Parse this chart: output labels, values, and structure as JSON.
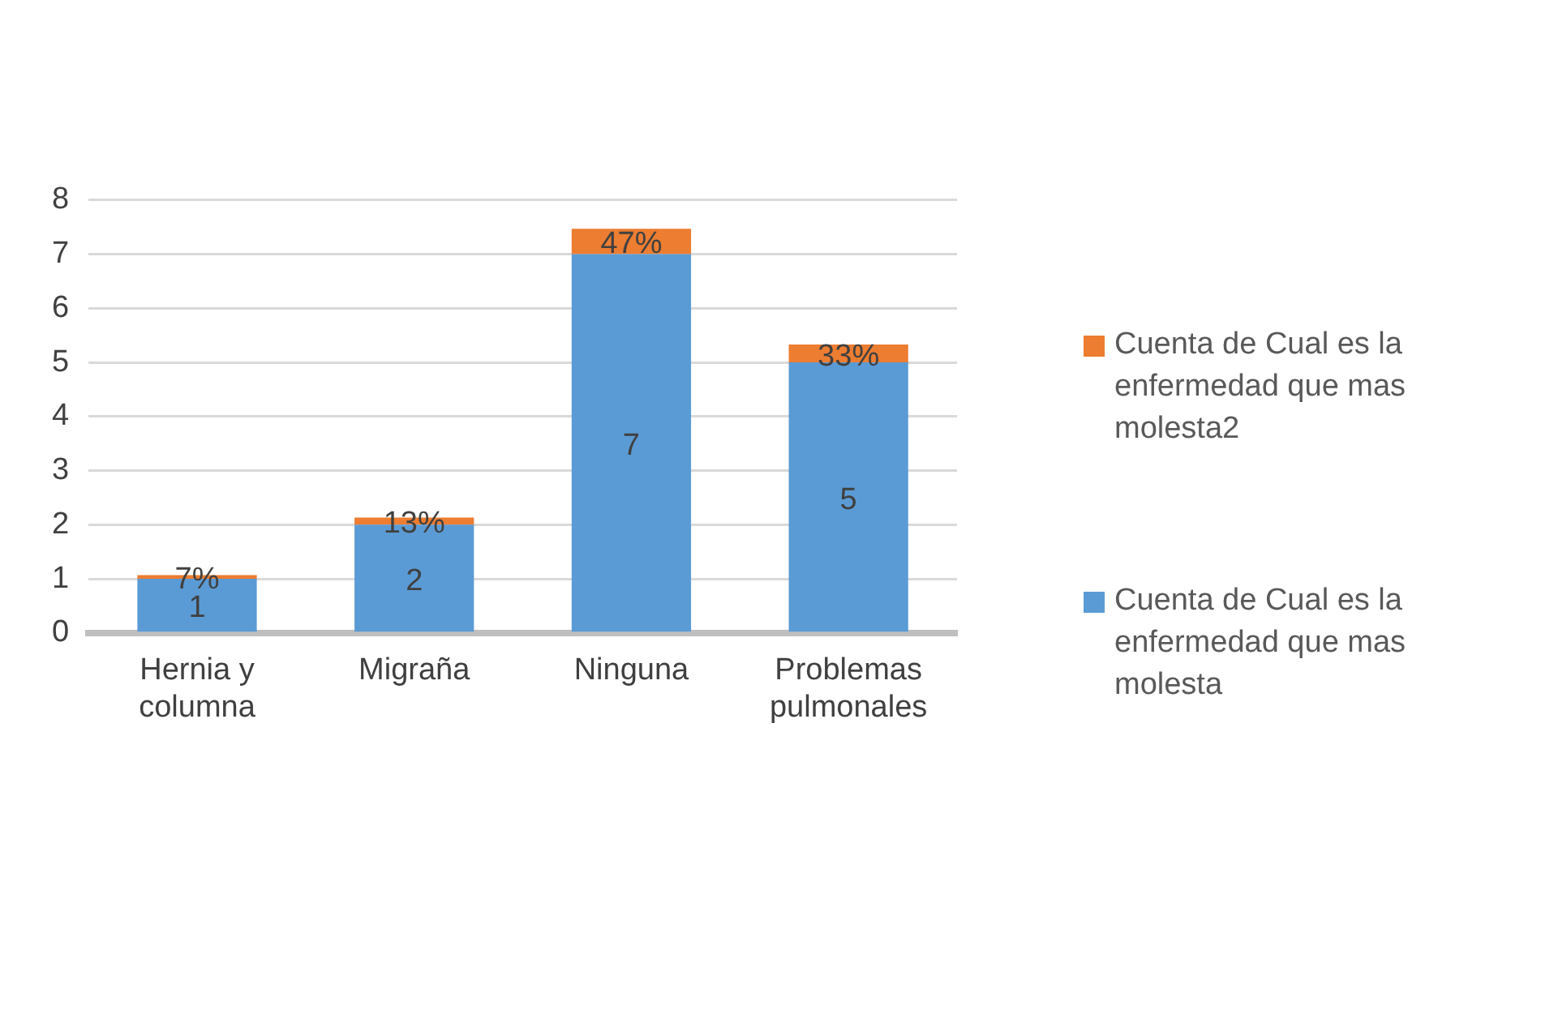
{
  "chart_data": {
    "type": "bar",
    "stacked": true,
    "categories": [
      "Hernia y columna",
      "Migraña",
      "Ninguna",
      "Problemas pulmonales"
    ],
    "series": [
      {
        "name": "Cuenta de Cual es la enfermedad que mas molesta",
        "color": "#5b9bd5",
        "values": [
          1,
          2,
          7,
          5
        ],
        "value_labels": [
          "1",
          "2",
          "7",
          "5"
        ]
      },
      {
        "name": "Cuenta de Cual es la enfermedad que mas molesta2",
        "color": "#ed7d31",
        "values": [
          0.07,
          0.13,
          0.47,
          0.33
        ],
        "value_labels": [
          "7%",
          "13%",
          "47%",
          "33%"
        ]
      }
    ],
    "ylim": [
      0,
      8
    ],
    "yticks": [
      0,
      1,
      2,
      3,
      4,
      5,
      6,
      7,
      8
    ],
    "grid": "y",
    "legend": "right"
  }
}
